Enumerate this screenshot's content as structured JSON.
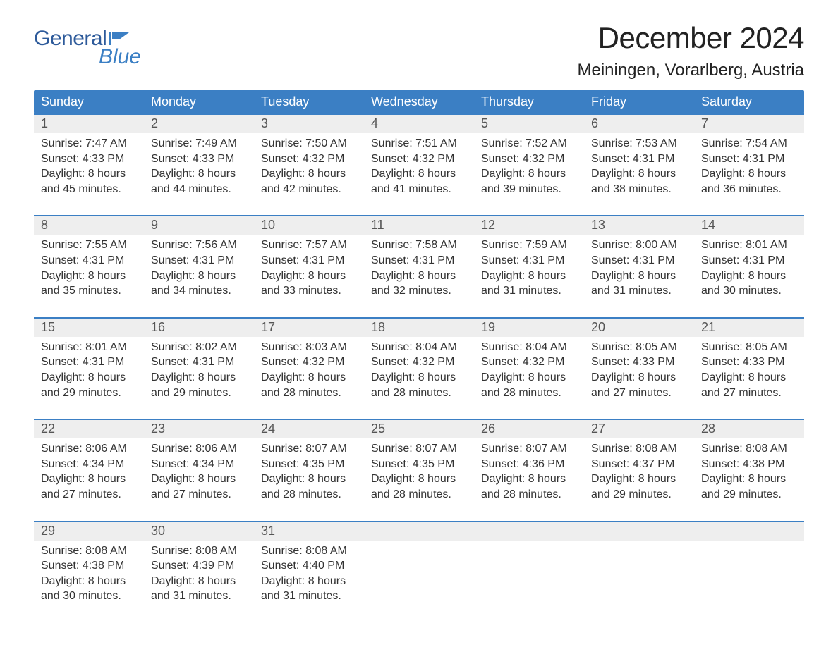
{
  "logo": {
    "word1": "General",
    "word2": "Blue",
    "text_color": "#2d5a9a",
    "blue_color": "#3b7fc4",
    "icon_color": "#3b7fc4"
  },
  "title": "December 2024",
  "location": "Meiningen, Vorarlberg, Austria",
  "colors": {
    "header_bg": "#3b7fc4",
    "header_text": "#ffffff",
    "week_border": "#3b7fc4",
    "date_row_bg": "#eeeeee",
    "body_text": "#333333",
    "date_text": "#555555",
    "background": "#ffffff"
  },
  "typography": {
    "title_fontsize": 42,
    "location_fontsize": 24,
    "header_fontsize": 18,
    "date_fontsize": 18,
    "cell_fontsize": 16,
    "font_family": "Arial"
  },
  "day_names": [
    "Sunday",
    "Monday",
    "Tuesday",
    "Wednesday",
    "Thursday",
    "Friday",
    "Saturday"
  ],
  "weeks": [
    {
      "dates": [
        "1",
        "2",
        "3",
        "4",
        "5",
        "6",
        "7"
      ],
      "cells": [
        {
          "sunrise": "Sunrise: 7:47 AM",
          "sunset": "Sunset: 4:33 PM",
          "daylight1": "Daylight: 8 hours",
          "daylight2": "and 45 minutes."
        },
        {
          "sunrise": "Sunrise: 7:49 AM",
          "sunset": "Sunset: 4:33 PM",
          "daylight1": "Daylight: 8 hours",
          "daylight2": "and 44 minutes."
        },
        {
          "sunrise": "Sunrise: 7:50 AM",
          "sunset": "Sunset: 4:32 PM",
          "daylight1": "Daylight: 8 hours",
          "daylight2": "and 42 minutes."
        },
        {
          "sunrise": "Sunrise: 7:51 AM",
          "sunset": "Sunset: 4:32 PM",
          "daylight1": "Daylight: 8 hours",
          "daylight2": "and 41 minutes."
        },
        {
          "sunrise": "Sunrise: 7:52 AM",
          "sunset": "Sunset: 4:32 PM",
          "daylight1": "Daylight: 8 hours",
          "daylight2": "and 39 minutes."
        },
        {
          "sunrise": "Sunrise: 7:53 AM",
          "sunset": "Sunset: 4:31 PM",
          "daylight1": "Daylight: 8 hours",
          "daylight2": "and 38 minutes."
        },
        {
          "sunrise": "Sunrise: 7:54 AM",
          "sunset": "Sunset: 4:31 PM",
          "daylight1": "Daylight: 8 hours",
          "daylight2": "and 36 minutes."
        }
      ]
    },
    {
      "dates": [
        "8",
        "9",
        "10",
        "11",
        "12",
        "13",
        "14"
      ],
      "cells": [
        {
          "sunrise": "Sunrise: 7:55 AM",
          "sunset": "Sunset: 4:31 PM",
          "daylight1": "Daylight: 8 hours",
          "daylight2": "and 35 minutes."
        },
        {
          "sunrise": "Sunrise: 7:56 AM",
          "sunset": "Sunset: 4:31 PM",
          "daylight1": "Daylight: 8 hours",
          "daylight2": "and 34 minutes."
        },
        {
          "sunrise": "Sunrise: 7:57 AM",
          "sunset": "Sunset: 4:31 PM",
          "daylight1": "Daylight: 8 hours",
          "daylight2": "and 33 minutes."
        },
        {
          "sunrise": "Sunrise: 7:58 AM",
          "sunset": "Sunset: 4:31 PM",
          "daylight1": "Daylight: 8 hours",
          "daylight2": "and 32 minutes."
        },
        {
          "sunrise": "Sunrise: 7:59 AM",
          "sunset": "Sunset: 4:31 PM",
          "daylight1": "Daylight: 8 hours",
          "daylight2": "and 31 minutes."
        },
        {
          "sunrise": "Sunrise: 8:00 AM",
          "sunset": "Sunset: 4:31 PM",
          "daylight1": "Daylight: 8 hours",
          "daylight2": "and 31 minutes."
        },
        {
          "sunrise": "Sunrise: 8:01 AM",
          "sunset": "Sunset: 4:31 PM",
          "daylight1": "Daylight: 8 hours",
          "daylight2": "and 30 minutes."
        }
      ]
    },
    {
      "dates": [
        "15",
        "16",
        "17",
        "18",
        "19",
        "20",
        "21"
      ],
      "cells": [
        {
          "sunrise": "Sunrise: 8:01 AM",
          "sunset": "Sunset: 4:31 PM",
          "daylight1": "Daylight: 8 hours",
          "daylight2": "and 29 minutes."
        },
        {
          "sunrise": "Sunrise: 8:02 AM",
          "sunset": "Sunset: 4:31 PM",
          "daylight1": "Daylight: 8 hours",
          "daylight2": "and 29 minutes."
        },
        {
          "sunrise": "Sunrise: 8:03 AM",
          "sunset": "Sunset: 4:32 PM",
          "daylight1": "Daylight: 8 hours",
          "daylight2": "and 28 minutes."
        },
        {
          "sunrise": "Sunrise: 8:04 AM",
          "sunset": "Sunset: 4:32 PM",
          "daylight1": "Daylight: 8 hours",
          "daylight2": "and 28 minutes."
        },
        {
          "sunrise": "Sunrise: 8:04 AM",
          "sunset": "Sunset: 4:32 PM",
          "daylight1": "Daylight: 8 hours",
          "daylight2": "and 28 minutes."
        },
        {
          "sunrise": "Sunrise: 8:05 AM",
          "sunset": "Sunset: 4:33 PM",
          "daylight1": "Daylight: 8 hours",
          "daylight2": "and 27 minutes."
        },
        {
          "sunrise": "Sunrise: 8:05 AM",
          "sunset": "Sunset: 4:33 PM",
          "daylight1": "Daylight: 8 hours",
          "daylight2": "and 27 minutes."
        }
      ]
    },
    {
      "dates": [
        "22",
        "23",
        "24",
        "25",
        "26",
        "27",
        "28"
      ],
      "cells": [
        {
          "sunrise": "Sunrise: 8:06 AM",
          "sunset": "Sunset: 4:34 PM",
          "daylight1": "Daylight: 8 hours",
          "daylight2": "and 27 minutes."
        },
        {
          "sunrise": "Sunrise: 8:06 AM",
          "sunset": "Sunset: 4:34 PM",
          "daylight1": "Daylight: 8 hours",
          "daylight2": "and 27 minutes."
        },
        {
          "sunrise": "Sunrise: 8:07 AM",
          "sunset": "Sunset: 4:35 PM",
          "daylight1": "Daylight: 8 hours",
          "daylight2": "and 28 minutes."
        },
        {
          "sunrise": "Sunrise: 8:07 AM",
          "sunset": "Sunset: 4:35 PM",
          "daylight1": "Daylight: 8 hours",
          "daylight2": "and 28 minutes."
        },
        {
          "sunrise": "Sunrise: 8:07 AM",
          "sunset": "Sunset: 4:36 PM",
          "daylight1": "Daylight: 8 hours",
          "daylight2": "and 28 minutes."
        },
        {
          "sunrise": "Sunrise: 8:08 AM",
          "sunset": "Sunset: 4:37 PM",
          "daylight1": "Daylight: 8 hours",
          "daylight2": "and 29 minutes."
        },
        {
          "sunrise": "Sunrise: 8:08 AM",
          "sunset": "Sunset: 4:38 PM",
          "daylight1": "Daylight: 8 hours",
          "daylight2": "and 29 minutes."
        }
      ]
    },
    {
      "dates": [
        "29",
        "30",
        "31",
        "",
        "",
        "",
        ""
      ],
      "cells": [
        {
          "sunrise": "Sunrise: 8:08 AM",
          "sunset": "Sunset: 4:38 PM",
          "daylight1": "Daylight: 8 hours",
          "daylight2": "and 30 minutes."
        },
        {
          "sunrise": "Sunrise: 8:08 AM",
          "sunset": "Sunset: 4:39 PM",
          "daylight1": "Daylight: 8 hours",
          "daylight2": "and 31 minutes."
        },
        {
          "sunrise": "Sunrise: 8:08 AM",
          "sunset": "Sunset: 4:40 PM",
          "daylight1": "Daylight: 8 hours",
          "daylight2": "and 31 minutes."
        },
        {
          "sunrise": "",
          "sunset": "",
          "daylight1": "",
          "daylight2": ""
        },
        {
          "sunrise": "",
          "sunset": "",
          "daylight1": "",
          "daylight2": ""
        },
        {
          "sunrise": "",
          "sunset": "",
          "daylight1": "",
          "daylight2": ""
        },
        {
          "sunrise": "",
          "sunset": "",
          "daylight1": "",
          "daylight2": ""
        }
      ]
    }
  ]
}
